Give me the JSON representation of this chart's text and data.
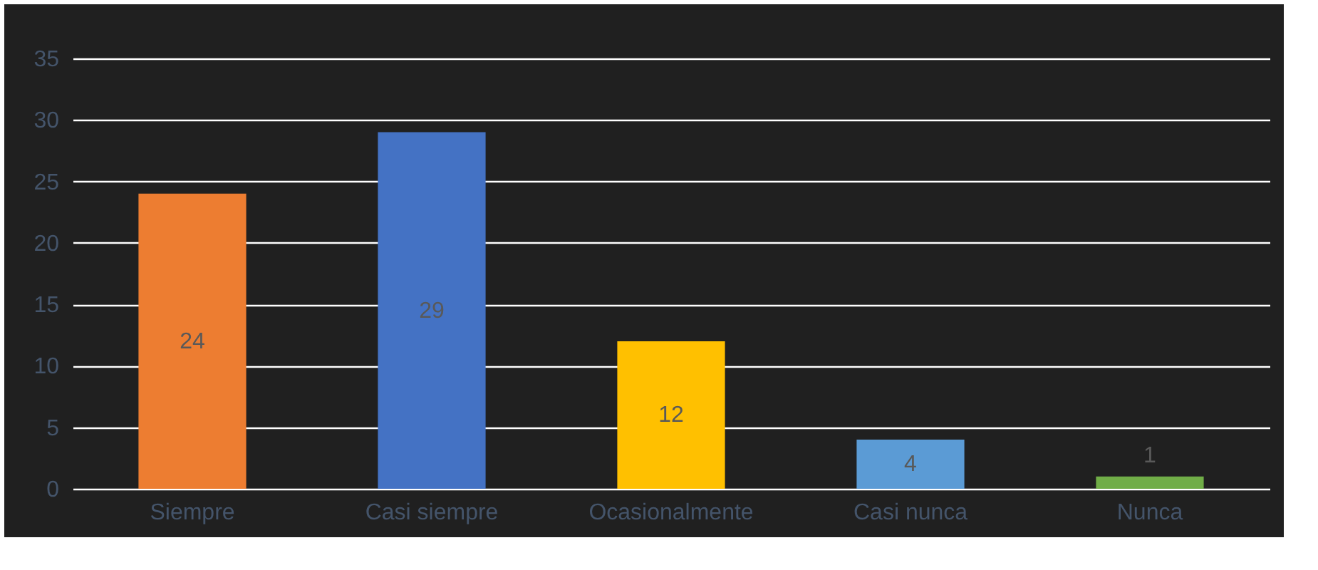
{
  "chart_data": {
    "type": "bar",
    "categories": [
      "Siempre",
      "Casi siempre",
      "Ocasionalmente",
      "Casi nunca",
      "Nunca"
    ],
    "values": [
      24,
      29,
      12,
      4,
      1
    ],
    "colors": [
      "#ed7d31",
      "#4472c4",
      "#ffc000",
      "#5b9bd5",
      "#70ad47"
    ],
    "ylim": [
      0,
      35
    ],
    "yticks": [
      0,
      5,
      10,
      15,
      20,
      25,
      30,
      35
    ],
    "grid": "y",
    "data_labels": true,
    "legend": false
  }
}
